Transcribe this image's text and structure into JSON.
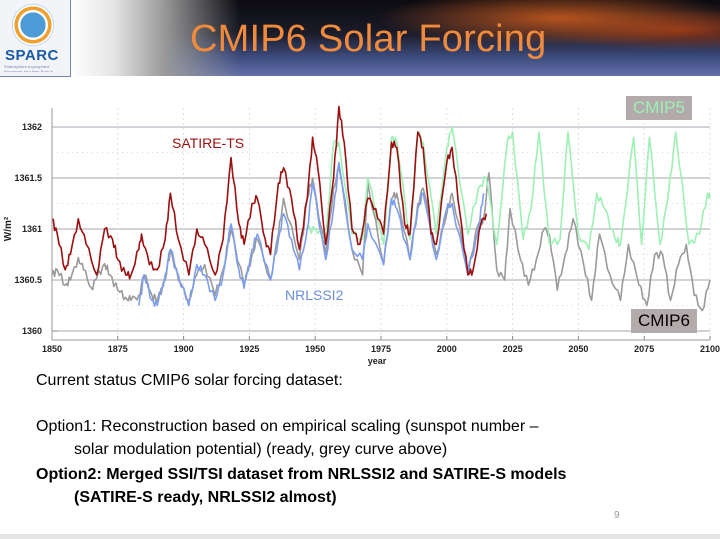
{
  "header": {
    "logo_text": "SPARC",
    "logo_subtext": "Stratosphere-troposphere Processes And their Role in Climate",
    "title": "CMIP6 Solar Forcing"
  },
  "colors": {
    "title": "#f08a3c",
    "satire": "#9b1010",
    "nrlssi2": "#7c9ef0",
    "cmip5": "#9ef0b4",
    "cmip6": "#9a9a9a",
    "label_box": "#b3abab"
  },
  "chart_data": {
    "type": "line",
    "title": "",
    "xlabel": "year",
    "ylabel": "W/m²",
    "xlim": [
      1850,
      2100
    ],
    "ylim": [
      1360,
      1362.2
    ],
    "xticks": [
      "1850",
      "1875",
      "1900",
      "1925",
      "1950",
      "1975",
      "2000",
      "2025",
      "2050",
      "2075",
      "2100"
    ],
    "yticks": [
      "1360",
      "1360.5",
      "1361",
      "1361.5",
      "1362"
    ],
    "grid": true,
    "annotations": [
      {
        "text": "SATIRE-TS",
        "color": "#9b1010",
        "position": "upper-left"
      },
      {
        "text": "NRLSSI2",
        "color": "#6a90d8",
        "position": "center-bottom"
      },
      {
        "text": "CMIP5",
        "color": "#9ef0b4",
        "position": "top-right",
        "boxed": true
      },
      {
        "text": "CMIP6",
        "color": "#000000",
        "position": "bottom-right",
        "boxed": true
      }
    ],
    "series": [
      {
        "name": "CMIP6",
        "color": "#9a9a9a",
        "x": [
          1850,
          1852,
          1855,
          1857,
          1860,
          1862,
          1865,
          1867,
          1870,
          1872,
          1875,
          1878,
          1880,
          1883,
          1885,
          1888,
          1890,
          1893,
          1895,
          1898,
          1902,
          1905,
          1908,
          1912,
          1915,
          1918,
          1923,
          1926,
          1928,
          1933,
          1936,
          1938,
          1944,
          1947,
          1949,
          1954,
          1957,
          1959,
          1964,
          1968,
          1970,
          1976,
          1979,
          1981,
          1986,
          1989,
          1991,
          1996,
          2000,
          2002,
          2008,
          2012,
          2014,
          2016,
          2019,
          2022,
          2024,
          2028,
          2031,
          2034,
          2037,
          2039,
          2042,
          2045,
          2048,
          2052,
          2055,
          2058,
          2062,
          2066,
          2069,
          2073,
          2076,
          2079,
          2082,
          2085,
          2088,
          2091,
          2094,
          2097,
          2100
        ],
        "y": [
          1360.55,
          1360.6,
          1360.45,
          1360.5,
          1360.72,
          1360.6,
          1360.42,
          1360.52,
          1360.66,
          1360.55,
          1360.4,
          1360.33,
          1360.3,
          1360.35,
          1360.55,
          1360.35,
          1360.3,
          1360.5,
          1360.8,
          1360.5,
          1360.3,
          1360.55,
          1360.65,
          1360.35,
          1360.6,
          1361.0,
          1360.45,
          1360.75,
          1360.9,
          1360.5,
          1360.95,
          1361.3,
          1360.7,
          1361.3,
          1361.5,
          1360.75,
          1361.4,
          1361.6,
          1360.8,
          1360.55,
          1361.45,
          1360.65,
          1361.3,
          1361.35,
          1360.7,
          1361.25,
          1361.4,
          1360.75,
          1361.15,
          1361.35,
          1360.6,
          1361.05,
          1361.1,
          1361.55,
          1360.6,
          1360.5,
          1361.2,
          1360.7,
          1360.45,
          1360.7,
          1361.0,
          1360.95,
          1360.4,
          1360.75,
          1361.1,
          1360.65,
          1360.3,
          1360.95,
          1360.55,
          1360.3,
          1360.85,
          1360.45,
          1360.25,
          1360.75,
          1360.75,
          1360.3,
          1360.65,
          1360.85,
          1360.35,
          1360.2,
          1360.5
        ]
      },
      {
        "name": "NRLSSI2",
        "color": "#7c9ef0",
        "x": [
          1883,
          1885,
          1888,
          1890,
          1893,
          1895,
          1898,
          1902,
          1905,
          1908,
          1912,
          1915,
          1918,
          1921,
          1923,
          1926,
          1928,
          1933,
          1936,
          1938,
          1941,
          1944,
          1947,
          1949,
          1954,
          1957,
          1959,
          1964,
          1968,
          1970,
          1976,
          1979,
          1981,
          1986,
          1989,
          1991,
          1996,
          2000,
          2002,
          2008,
          2012,
          2014
        ],
        "y": [
          1360.25,
          1360.55,
          1360.3,
          1360.25,
          1360.55,
          1360.8,
          1360.55,
          1360.25,
          1360.65,
          1360.55,
          1360.3,
          1360.55,
          1361.05,
          1360.6,
          1360.42,
          1360.8,
          1360.95,
          1360.5,
          1360.9,
          1361.15,
          1360.9,
          1360.6,
          1361.0,
          1361.45,
          1360.7,
          1361.2,
          1361.65,
          1360.8,
          1360.7,
          1361.05,
          1360.65,
          1361.3,
          1361.2,
          1360.7,
          1361.2,
          1361.35,
          1360.7,
          1361.2,
          1361.25,
          1360.55,
          1361.0,
          1361.35
        ]
      },
      {
        "name": "SATIRE-TS",
        "color": "#9b1010",
        "x": [
          1850,
          1852,
          1855,
          1857,
          1860,
          1863,
          1867,
          1870,
          1873,
          1875,
          1878,
          1880,
          1883,
          1884,
          1887,
          1890,
          1893,
          1895,
          1898,
          1902,
          1905,
          1908,
          1912,
          1915,
          1918,
          1921,
          1923,
          1926,
          1928,
          1931,
          1933,
          1936,
          1938,
          1941,
          1944,
          1947,
          1949,
          1951,
          1954,
          1957,
          1959,
          1961,
          1964,
          1967,
          1970,
          1973,
          1976,
          1979,
          1981,
          1984,
          1986,
          1989,
          1991,
          1994,
          1996,
          2000,
          2002,
          2005,
          2008,
          2010,
          2013,
          2015
        ],
        "y": [
          1361.1,
          1360.95,
          1360.6,
          1360.75,
          1361.1,
          1360.85,
          1360.55,
          1361.0,
          1360.9,
          1360.7,
          1360.55,
          1360.55,
          1360.8,
          1360.95,
          1360.65,
          1360.6,
          1360.9,
          1361.35,
          1360.9,
          1360.55,
          1361.0,
          1360.85,
          1360.55,
          1360.9,
          1361.7,
          1361.05,
          1360.85,
          1361.25,
          1361.3,
          1360.9,
          1360.75,
          1361.45,
          1361.6,
          1361.3,
          1360.8,
          1361.3,
          1361.9,
          1361.6,
          1360.85,
          1361.5,
          1362.2,
          1361.85,
          1361.0,
          1360.85,
          1361.3,
          1361.2,
          1360.95,
          1361.85,
          1361.8,
          1361.05,
          1360.95,
          1361.95,
          1361.8,
          1360.95,
          1360.85,
          1361.65,
          1361.8,
          1361.15,
          1360.55,
          1360.6,
          1361.05,
          1361.15
        ]
      },
      {
        "name": "CMIP5",
        "color": "#9ef0b4",
        "x": [
          1947,
          1950,
          1954,
          1957,
          1959,
          1964,
          1968,
          1970,
          1976,
          1979,
          1981,
          1986,
          1989,
          1991,
          1996,
          2000,
          2002,
          2008,
          2012,
          2015,
          2019,
          2023,
          2025,
          2029,
          2032,
          2035,
          2039,
          2043,
          2046,
          2050,
          2054,
          2057,
          2060,
          2064,
          2066,
          2071,
          2074,
          2077,
          2081,
          2084,
          2087,
          2092,
          2096,
          2099,
          2100
        ],
        "y": [
          1361.0,
          1361.0,
          1360.9,
          1361.85,
          1361.85,
          1360.95,
          1360.9,
          1361.5,
          1360.85,
          1361.9,
          1361.85,
          1360.9,
          1361.95,
          1361.85,
          1360.95,
          1361.8,
          1362.0,
          1360.95,
          1361.4,
          1361.5,
          1360.85,
          1361.85,
          1361.95,
          1360.9,
          1361.2,
          1361.95,
          1360.85,
          1360.9,
          1361.95,
          1360.95,
          1360.8,
          1361.35,
          1361.2,
          1360.9,
          1360.85,
          1361.9,
          1360.85,
          1361.9,
          1360.85,
          1361.3,
          1361.95,
          1360.85,
          1360.95,
          1361.35,
          1361.3
        ]
      }
    ]
  },
  "body": {
    "line1": "Current status CMIP6 solar forcing dataset:",
    "option1_line1": "Option1: Reconstruction based on empirical scaling (sunspot number –",
    "option1_line2": "solar modulation potential) (ready, grey curve above)",
    "option2_line1": "Option2: Merged SSI/TSI dataset from NRLSSI2 and SATIRE-S models",
    "option2_line2": "(SATIRE-S ready, NRLSSI2 almost)",
    "page_number": "9"
  }
}
